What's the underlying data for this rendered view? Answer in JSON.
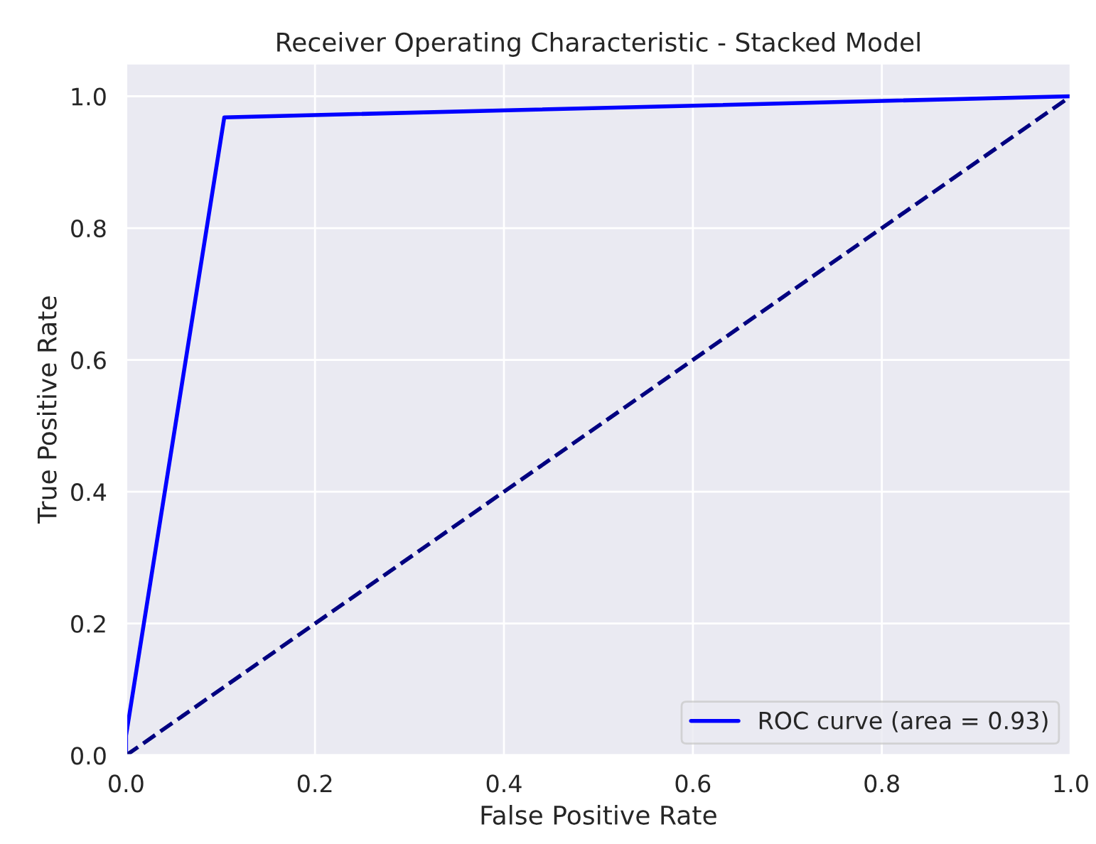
{
  "chart_data": {
    "type": "line",
    "title": "Receiver Operating Characteristic - Stacked Model",
    "xlabel": "False Positive Rate",
    "ylabel": "True Positive Rate",
    "series": [
      {
        "name": "ROC curve (area = 0.93)",
        "color": "#0000ff",
        "x": [
          0,
          0,
          0.104,
          1
        ],
        "values": [
          0,
          0.03,
          0.968,
          1
        ],
        "line_style": "solid"
      },
      {
        "color": "#000080",
        "x": [
          0,
          1
        ],
        "values": [
          0,
          1
        ],
        "line_style": "dashed"
      }
    ],
    "xlim": [
      0,
      1
    ],
    "ylim": [
      0,
      1.05
    ],
    "xticks": [
      {
        "value": 0,
        "label": "0.0"
      },
      0.2,
      0.4,
      0.6,
      0.8,
      {
        "value": 1,
        "label": "1.0"
      }
    ],
    "yticks": [
      {
        "value": 0,
        "label": "0.0"
      },
      0.2,
      0.4,
      0.6,
      0.8,
      {
        "value": 1,
        "label": "1.0"
      }
    ],
    "grid": true,
    "legend": "lower right",
    "marker": "none"
  }
}
